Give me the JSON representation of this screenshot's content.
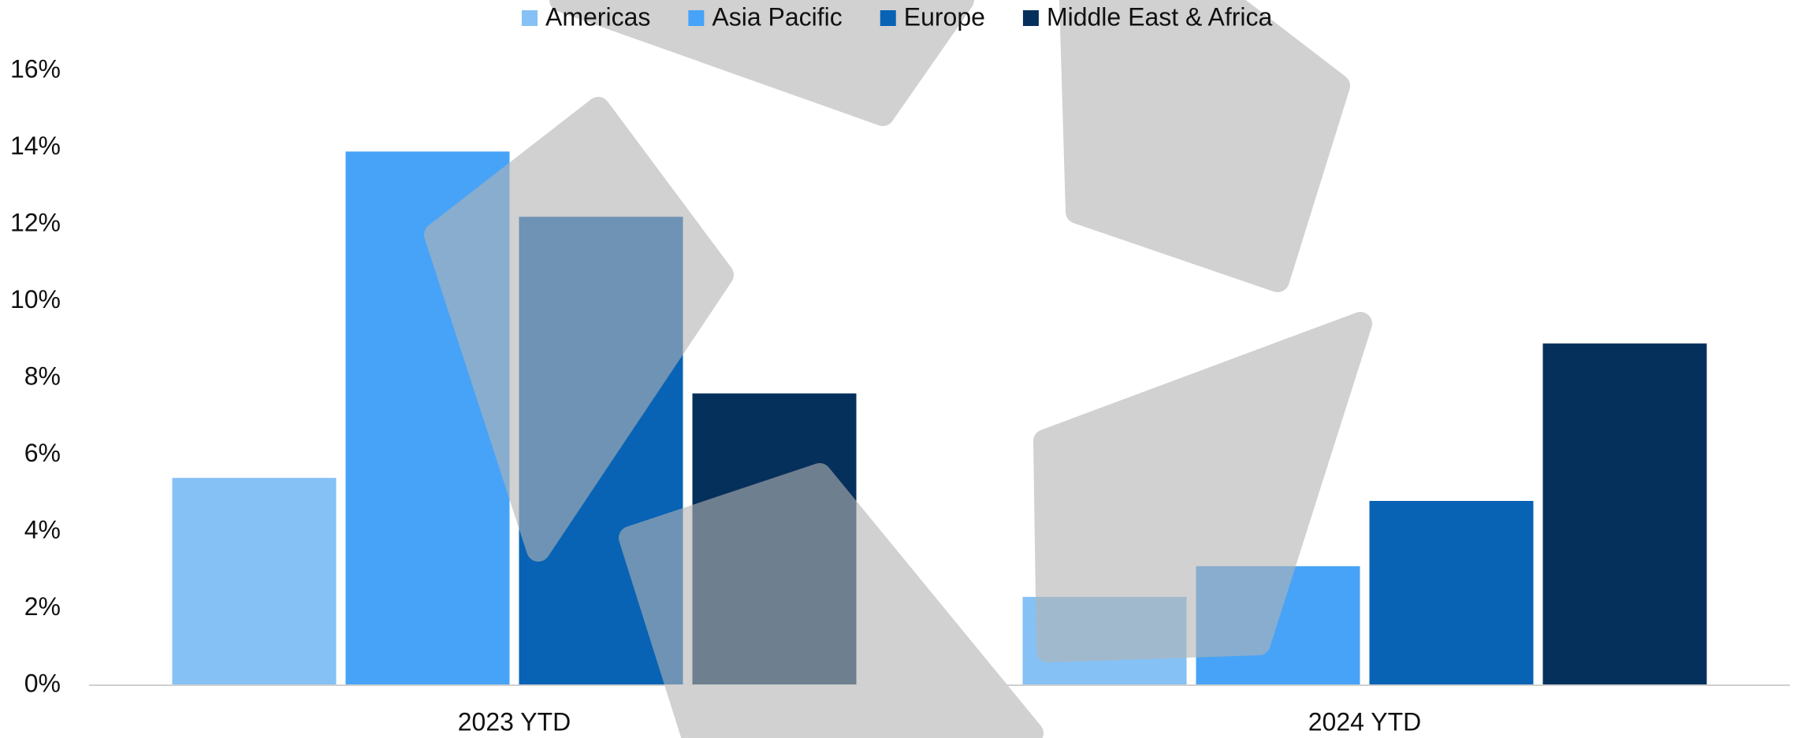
{
  "chart_data": {
    "type": "bar",
    "categories": [
      "2023 YTD",
      "2024 YTD"
    ],
    "series": [
      {
        "name": "Americas",
        "color": "#85c1f5",
        "values": [
          5.4,
          2.3
        ]
      },
      {
        "name": "Asia Pacific",
        "color": "#47a3f7",
        "values": [
          13.9,
          3.1
        ]
      },
      {
        "name": "Europe",
        "color": "#0863b5",
        "values": [
          12.2,
          4.8
        ]
      },
      {
        "name": "Middle East & Africa",
        "color": "#06305c",
        "values": [
          7.6,
          8.9
        ]
      }
    ],
    "ylim": [
      0,
      16
    ],
    "yticks": [
      {
        "value": 0,
        "label": "0%"
      },
      {
        "value": 2,
        "label": "2%"
      },
      {
        "value": 4,
        "label": "4%"
      },
      {
        "value": 6,
        "label": "6%"
      },
      {
        "value": 8,
        "label": "8%"
      },
      {
        "value": 10,
        "label": "10%"
      },
      {
        "value": 12,
        "label": "12%"
      },
      {
        "value": 14,
        "label": "14%"
      },
      {
        "value": 16,
        "label": "16%"
      }
    ],
    "grid": false,
    "legend": "top"
  }
}
